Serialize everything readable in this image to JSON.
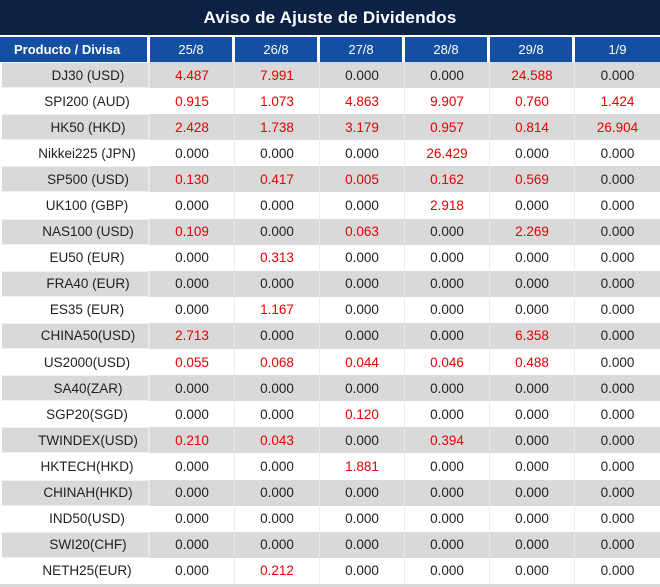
{
  "title": "Aviso de Ajuste de Dividendos",
  "columns": [
    "Producto / Divisa",
    "25/8",
    "26/8",
    "27/8",
    "28/8",
    "29/8",
    "1/9"
  ],
  "rows": [
    {
      "product": "DJ30 (USD)",
      "values": [
        "4.487",
        "7.991",
        "0.000",
        "0.000",
        "24.588",
        "0.000"
      ]
    },
    {
      "product": "SPI200 (AUD)",
      "values": [
        "0.915",
        "1.073",
        "4.863",
        "9.907",
        "0.760",
        "1.424"
      ]
    },
    {
      "product": "HK50 (HKD)",
      "values": [
        "2.428",
        "1.738",
        "3.179",
        "0.957",
        "0.814",
        "26.904"
      ]
    },
    {
      "product": "Nikkei225 (JPN)",
      "values": [
        "0.000",
        "0.000",
        "0.000",
        "26.429",
        "0.000",
        "0.000"
      ]
    },
    {
      "product": "SP500 (USD)",
      "values": [
        "0.130",
        "0.417",
        "0.005",
        "0.162",
        "0.569",
        "0.000"
      ]
    },
    {
      "product": "UK100 (GBP)",
      "values": [
        "0.000",
        "0.000",
        "0.000",
        "2.918",
        "0.000",
        "0.000"
      ]
    },
    {
      "product": "NAS100 (USD)",
      "values": [
        "0.109",
        "0.000",
        "0.063",
        "0.000",
        "2.269",
        "0.000"
      ]
    },
    {
      "product": "EU50 (EUR)",
      "values": [
        "0.000",
        "0.313",
        "0.000",
        "0.000",
        "0.000",
        "0.000"
      ]
    },
    {
      "product": "FRA40 (EUR)",
      "values": [
        "0.000",
        "0.000",
        "0.000",
        "0.000",
        "0.000",
        "0.000"
      ]
    },
    {
      "product": "ES35 (EUR)",
      "values": [
        "0.000",
        "1.167",
        "0.000",
        "0.000",
        "0.000",
        "0.000"
      ]
    },
    {
      "product": "CHINA50(USD)",
      "values": [
        "2.713",
        "0.000",
        "0.000",
        "0.000",
        "6.358",
        "0.000"
      ]
    },
    {
      "product": "US2000(USD)",
      "values": [
        "0.055",
        "0.068",
        "0.044",
        "0.046",
        "0.488",
        "0.000"
      ]
    },
    {
      "product": "SA40(ZAR)",
      "values": [
        "0.000",
        "0.000",
        "0.000",
        "0.000",
        "0.000",
        "0.000"
      ]
    },
    {
      "product": "SGP20(SGD)",
      "values": [
        "0.000",
        "0.000",
        "0.120",
        "0.000",
        "0.000",
        "0.000"
      ]
    },
    {
      "product": "TWINDEX(USD)",
      "values": [
        "0.210",
        "0.043",
        "0.000",
        "0.394",
        "0.000",
        "0.000"
      ]
    },
    {
      "product": "HKTECH(HKD)",
      "values": [
        "0.000",
        "0.000",
        "1.881",
        "0.000",
        "0.000",
        "0.000"
      ]
    },
    {
      "product": "CHINAH(HKD)",
      "values": [
        "0.000",
        "0.000",
        "0.000",
        "0.000",
        "0.000",
        "0.000"
      ]
    },
    {
      "product": "IND50(USD)",
      "values": [
        "0.000",
        "0.000",
        "0.000",
        "0.000",
        "0.000",
        "0.000"
      ]
    },
    {
      "product": "SWI20(CHF)",
      "values": [
        "0.000",
        "0.000",
        "0.000",
        "0.000",
        "0.000",
        "0.000"
      ]
    },
    {
      "product": "NETH25(EUR)",
      "values": [
        "0.000",
        "0.212",
        "0.000",
        "0.000",
        "0.000",
        "0.000"
      ]
    }
  ],
  "colors": {
    "title_bg": "#0d2145",
    "header_bg": "#1450a2",
    "row_bg": "#ffffff",
    "row_alt_bg": "#d9d9d9",
    "header_text": "#ffffff",
    "value_zero": "#1f1f1f",
    "value_positive": "#e60000"
  }
}
